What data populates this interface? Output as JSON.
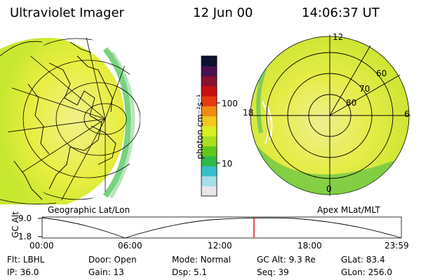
{
  "header": {
    "title": "Ultraviolet Imager",
    "date": "12 Jun 00",
    "time": "14:06:37 UT"
  },
  "left_panel": {
    "caption": "Geographic Lat/Lon"
  },
  "right_panel": {
    "caption": "Apex MLat/MLT",
    "mlt_labels": [
      "12",
      "18",
      "6",
      "0"
    ],
    "lat_labels": [
      "60",
      "70",
      "80"
    ]
  },
  "colorbar": {
    "label": "photon cm⁻²s⁻¹",
    "ticks": [
      "100",
      "10"
    ],
    "colors": [
      "#101030",
      "#4a1050",
      "#8a1030",
      "#c81010",
      "#e83a10",
      "#f08a10",
      "#f2c81a",
      "#d8f020",
      "#a8e020",
      "#60c818",
      "#30b848",
      "#38c0c8",
      "#a8dce8",
      "#e6e6ec"
    ]
  },
  "timeline": {
    "axis_label": "GC Alt",
    "y_labels": [
      "9.0",
      "1.8"
    ],
    "x_labels": [
      "00:00",
      "06:00",
      "12:00",
      "18:00",
      "23:59"
    ],
    "current_marker_color": "#dd1111"
  },
  "footer": {
    "row1": [
      {
        "label": "Flt:",
        "value": "LBHL"
      },
      {
        "label": "Door:",
        "value": "Open"
      },
      {
        "label": "Mode:",
        "value": "Normal"
      },
      {
        "label": "GC Alt:",
        "value": "9.3 Re"
      },
      {
        "label": "GLat:",
        "value": "83.4"
      }
    ],
    "row2": [
      {
        "label": "IP:",
        "value": "36.0"
      },
      {
        "label": "Gain:",
        "value": "13"
      },
      {
        "label": "Dsp:",
        "value": "5.1"
      },
      {
        "label": "Seq:",
        "value": "39"
      },
      {
        "label": "GLon:",
        "value": "256.0"
      }
    ]
  }
}
